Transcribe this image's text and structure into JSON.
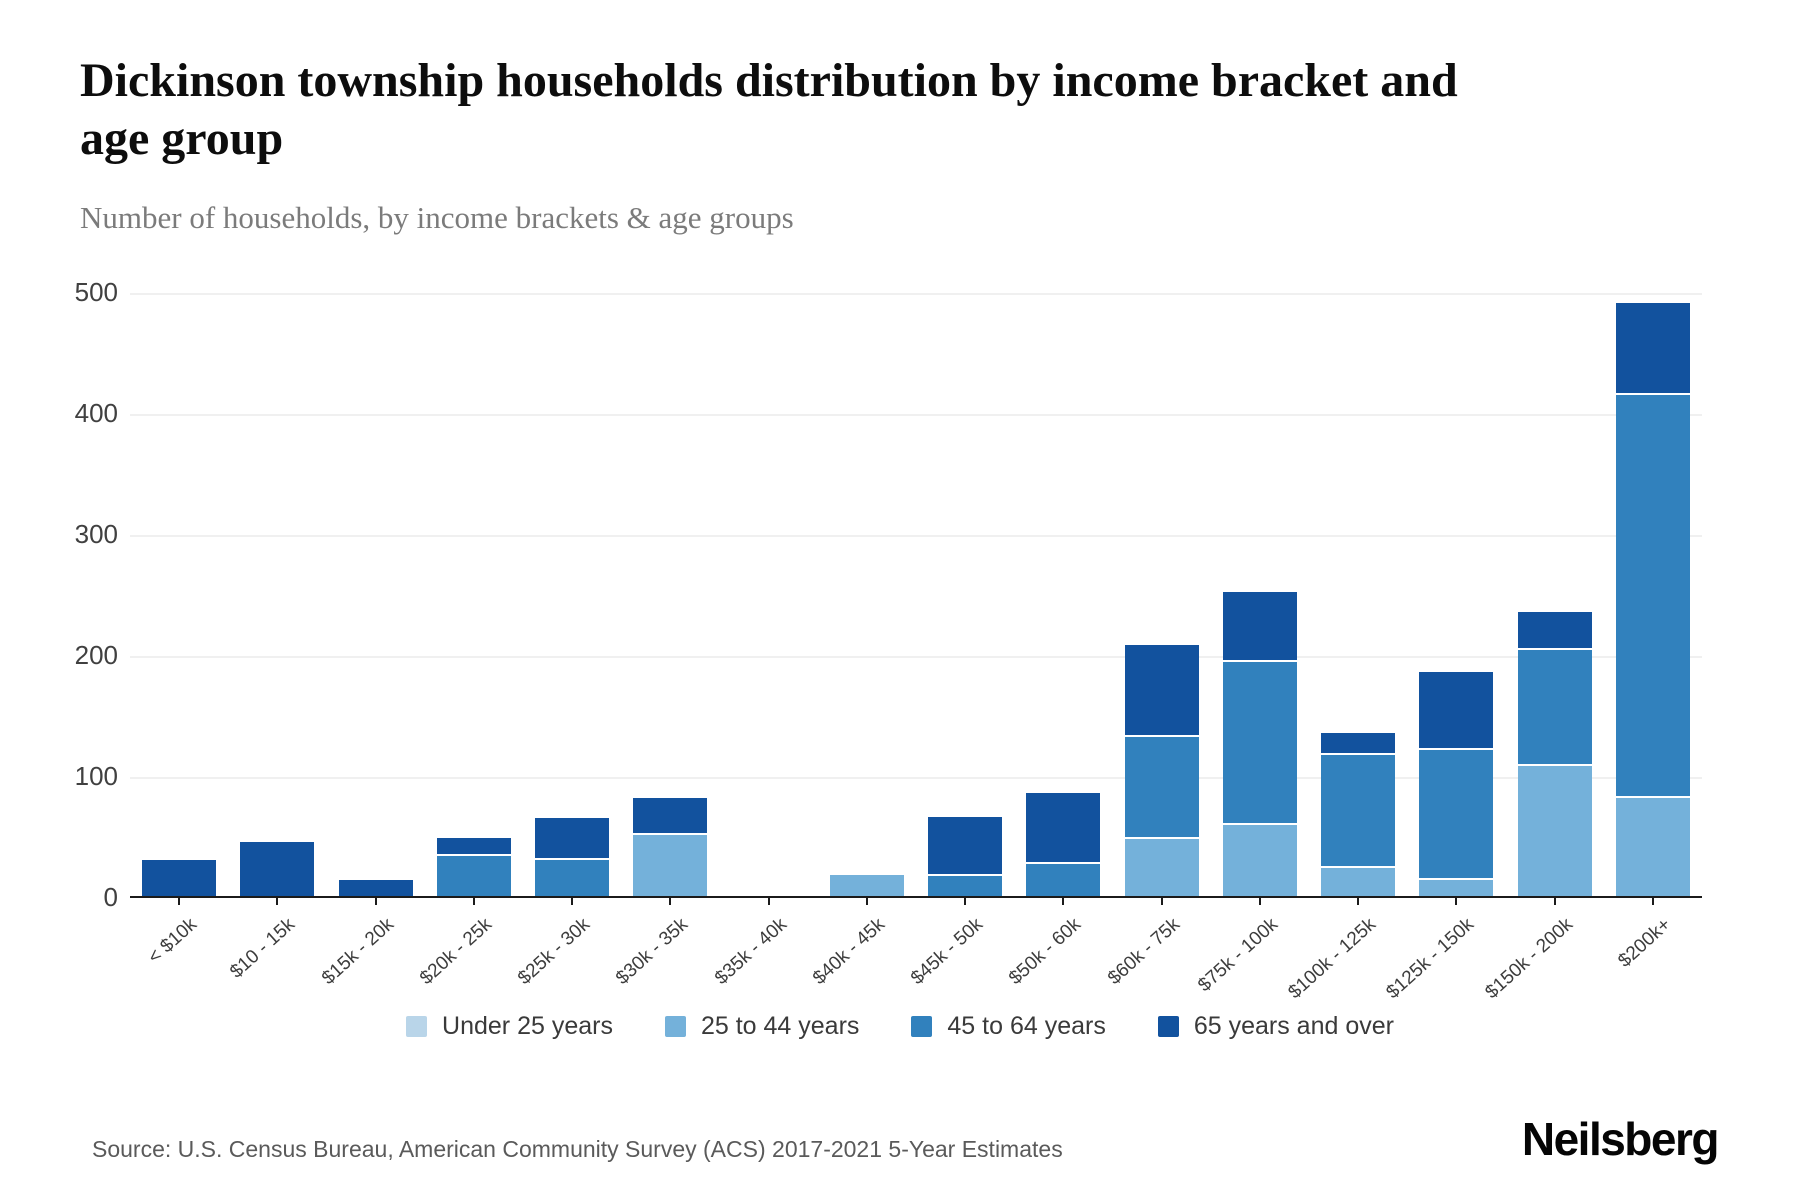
{
  "header": {
    "title": "Dickinson township households distribution by income bracket and age group",
    "title_lines": [
      "Dickinson township households distribution by income bracket and",
      "age group"
    ],
    "subtitle": "Number of households, by income brackets & age groups"
  },
  "chart_data": {
    "type": "bar",
    "stacked": true,
    "title": "Dickinson township households distribution by income bracket and age group",
    "xlabel": "",
    "ylabel": "Number of households",
    "ylim": [
      0,
      500
    ],
    "yticks": [
      0,
      100,
      200,
      300,
      400,
      500
    ],
    "grid": "horizontal",
    "legend_position": "bottom",
    "categories": [
      "< $10k",
      "$10 - 15k",
      "$15k - 20k",
      "$20k - 25k",
      "$25k - 30k",
      "$30k - 35k",
      "$35k - 40k",
      "$40k - 45k",
      "$45k - 50k",
      "$50k - 60k",
      "$60k - 75k",
      "$75k - 100k",
      "$100k - 125k",
      "$125k - 150k",
      "$150k - 200k",
      "$200k+"
    ],
    "series": [
      {
        "name": "Under 25 years",
        "color": "#b9d5e9",
        "values": [
          0,
          0,
          0,
          0,
          0,
          0,
          0,
          0,
          0,
          0,
          0,
          0,
          0,
          0,
          0,
          0
        ]
      },
      {
        "name": "25 to 44 years",
        "color": "#74b1da",
        "values": [
          0,
          0,
          0,
          0,
          0,
          52,
          0,
          19,
          0,
          0,
          49,
          60,
          25,
          15,
          109,
          83
        ]
      },
      {
        "name": "45 to 64 years",
        "color": "#3181bd",
        "values": [
          0,
          0,
          0,
          35,
          31,
          0,
          0,
          0,
          18,
          28,
          84,
          135,
          93,
          107,
          96,
          333
        ]
      },
      {
        "name": "65 years and over",
        "color": "#12529e",
        "values": [
          31,
          46,
          15,
          15,
          35,
          31,
          0,
          0,
          49,
          59,
          76,
          58,
          18,
          65,
          31,
          76
        ]
      }
    ]
  },
  "footer": {
    "source": "Source: U.S. Census Bureau, American Community Survey (ACS) 2017-2021 5-Year Estimates",
    "brand": "Neilsberg"
  }
}
